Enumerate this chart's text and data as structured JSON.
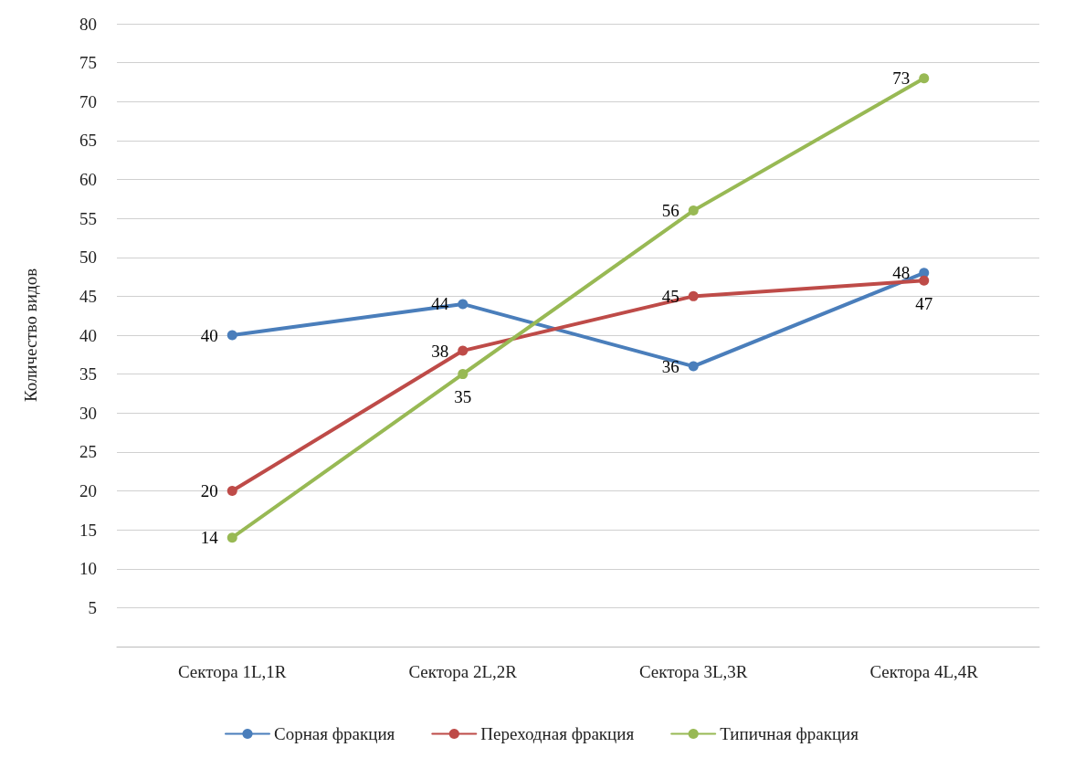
{
  "chart_data": {
    "type": "line",
    "ylabel": "Количество видов",
    "categories": [
      "Сектора 1L,1R",
      "Сектора 2L,2R",
      "Сектора 3L,3R",
      "Сектора 4L,4R"
    ],
    "series": [
      {
        "name": "Сорная фракция",
        "color": "#4a7ebb",
        "values": [
          40,
          44,
          36,
          48
        ]
      },
      {
        "name": "Переходная фракция",
        "color": "#be4b48",
        "values": [
          20,
          38,
          45,
          47
        ]
      },
      {
        "name": "Типичная фракция",
        "color": "#98b954",
        "values": [
          14,
          35,
          56,
          73
        ]
      }
    ],
    "ylim": [
      0,
      80
    ],
    "yticks": [
      {
        "value": 0,
        "label": null
      },
      5,
      10,
      15,
      20,
      25,
      30,
      35,
      40,
      45,
      50,
      55,
      60,
      65,
      70,
      75,
      80
    ],
    "grid": "y",
    "legend": "bottom",
    "marker": "circle",
    "line_style": "solid",
    "data_labels": true
  }
}
